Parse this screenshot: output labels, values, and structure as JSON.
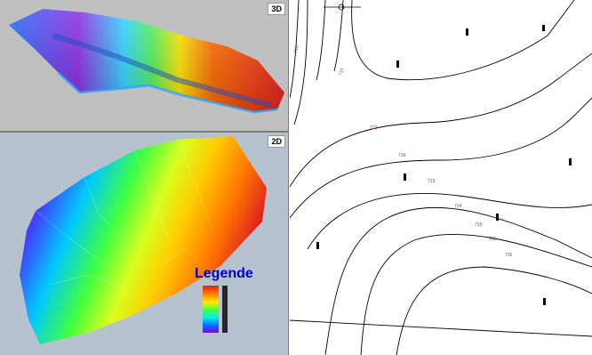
{
  "views": {
    "view3d_label": "3D",
    "view2d_label": "2D"
  },
  "legend": {
    "title": "Legende",
    "colors": [
      "#e02020",
      "#ff8000",
      "#ffee00",
      "#40ff40",
      "#00f0f0",
      "#0070ff",
      "#8000ff"
    ]
  },
  "contour_labels": [
    "715",
    "713",
    "714",
    "713",
    "714",
    "715",
    "715",
    "715",
    "716"
  ],
  "surface_colors": {
    "low": "#8000ff",
    "mid_low": "#00c8ff",
    "mid": "#40ff40",
    "mid_high": "#ffee00",
    "high": "#e02020"
  }
}
